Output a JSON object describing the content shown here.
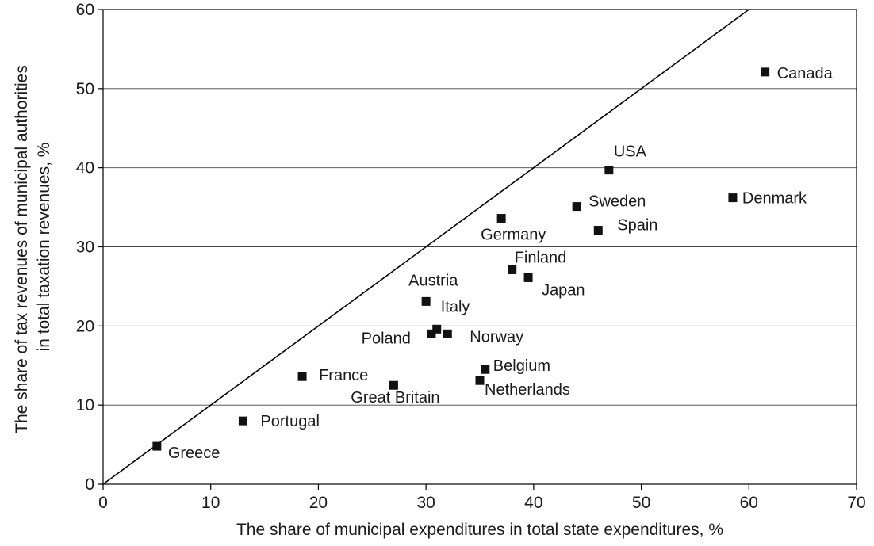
{
  "chart_data": {
    "type": "scatter",
    "xlabel": "The share of municipal expenditures in total state expenditures, %",
    "ylabel_lines": [
      "The share of tax revenues of municipal authorities",
      "in total taxation revenues, %"
    ],
    "xlim": [
      0,
      70
    ],
    "ylim": [
      0,
      60
    ],
    "x_ticks": [
      0,
      10,
      20,
      30,
      40,
      50,
      60,
      70
    ],
    "y_ticks": [
      0,
      10,
      20,
      30,
      40,
      50,
      60
    ],
    "grid": "horizontal",
    "reference_line": {
      "type": "diagonal",
      "from": [
        0,
        0
      ],
      "to": [
        60,
        60
      ]
    },
    "points": [
      {
        "name": "Greece",
        "x": 5,
        "y": 4.8
      },
      {
        "name": "Portugal",
        "x": 13,
        "y": 8
      },
      {
        "name": "France",
        "x": 18.5,
        "y": 13.6
      },
      {
        "name": "Great Britain",
        "x": 27,
        "y": 12.5
      },
      {
        "name": "Poland",
        "x": 30.5,
        "y": 19
      },
      {
        "name": "Italy",
        "x": 31,
        "y": 19.6
      },
      {
        "name": "Norway",
        "x": 32,
        "y": 19
      },
      {
        "name": "Austria",
        "x": 30,
        "y": 23.1
      },
      {
        "name": "Netherlands",
        "x": 35,
        "y": 13.1
      },
      {
        "name": "Belgium",
        "x": 35.5,
        "y": 14.5
      },
      {
        "name": "Germany",
        "x": 37,
        "y": 33.6
      },
      {
        "name": "Finland",
        "x": 38,
        "y": 27.1
      },
      {
        "name": "Japan",
        "x": 39.5,
        "y": 26.1
      },
      {
        "name": "Sweden",
        "x": 44,
        "y": 35.1
      },
      {
        "name": "Spain",
        "x": 46,
        "y": 32.1
      },
      {
        "name": "USA",
        "x": 47,
        "y": 39.7
      },
      {
        "name": "Denmark",
        "x": 58.5,
        "y": 36.2
      },
      {
        "name": "Canada",
        "x": 61.5,
        "y": 52.1
      }
    ]
  }
}
